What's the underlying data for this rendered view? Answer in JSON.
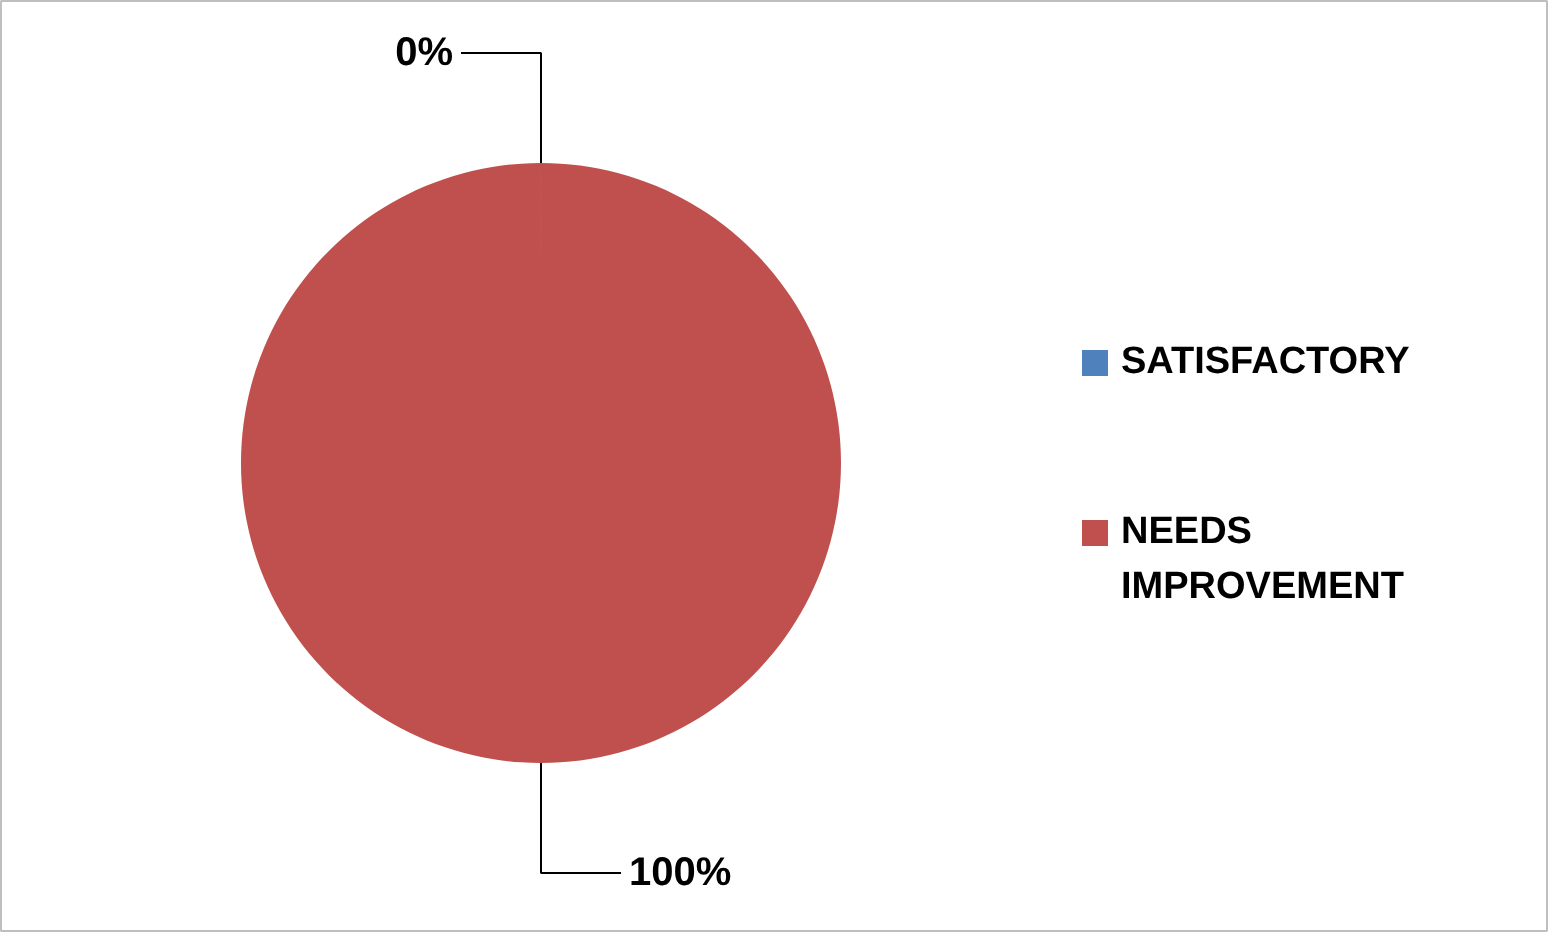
{
  "chart_data": {
    "type": "pie",
    "categories": [
      "SATISFACTORY",
      "NEEDS IMPROVEMENT"
    ],
    "values": [
      0,
      100
    ],
    "colors": [
      "#4f81bd",
      "#c0504d"
    ],
    "value_labels": [
      "0%",
      "100%"
    ],
    "legend": "right"
  }
}
